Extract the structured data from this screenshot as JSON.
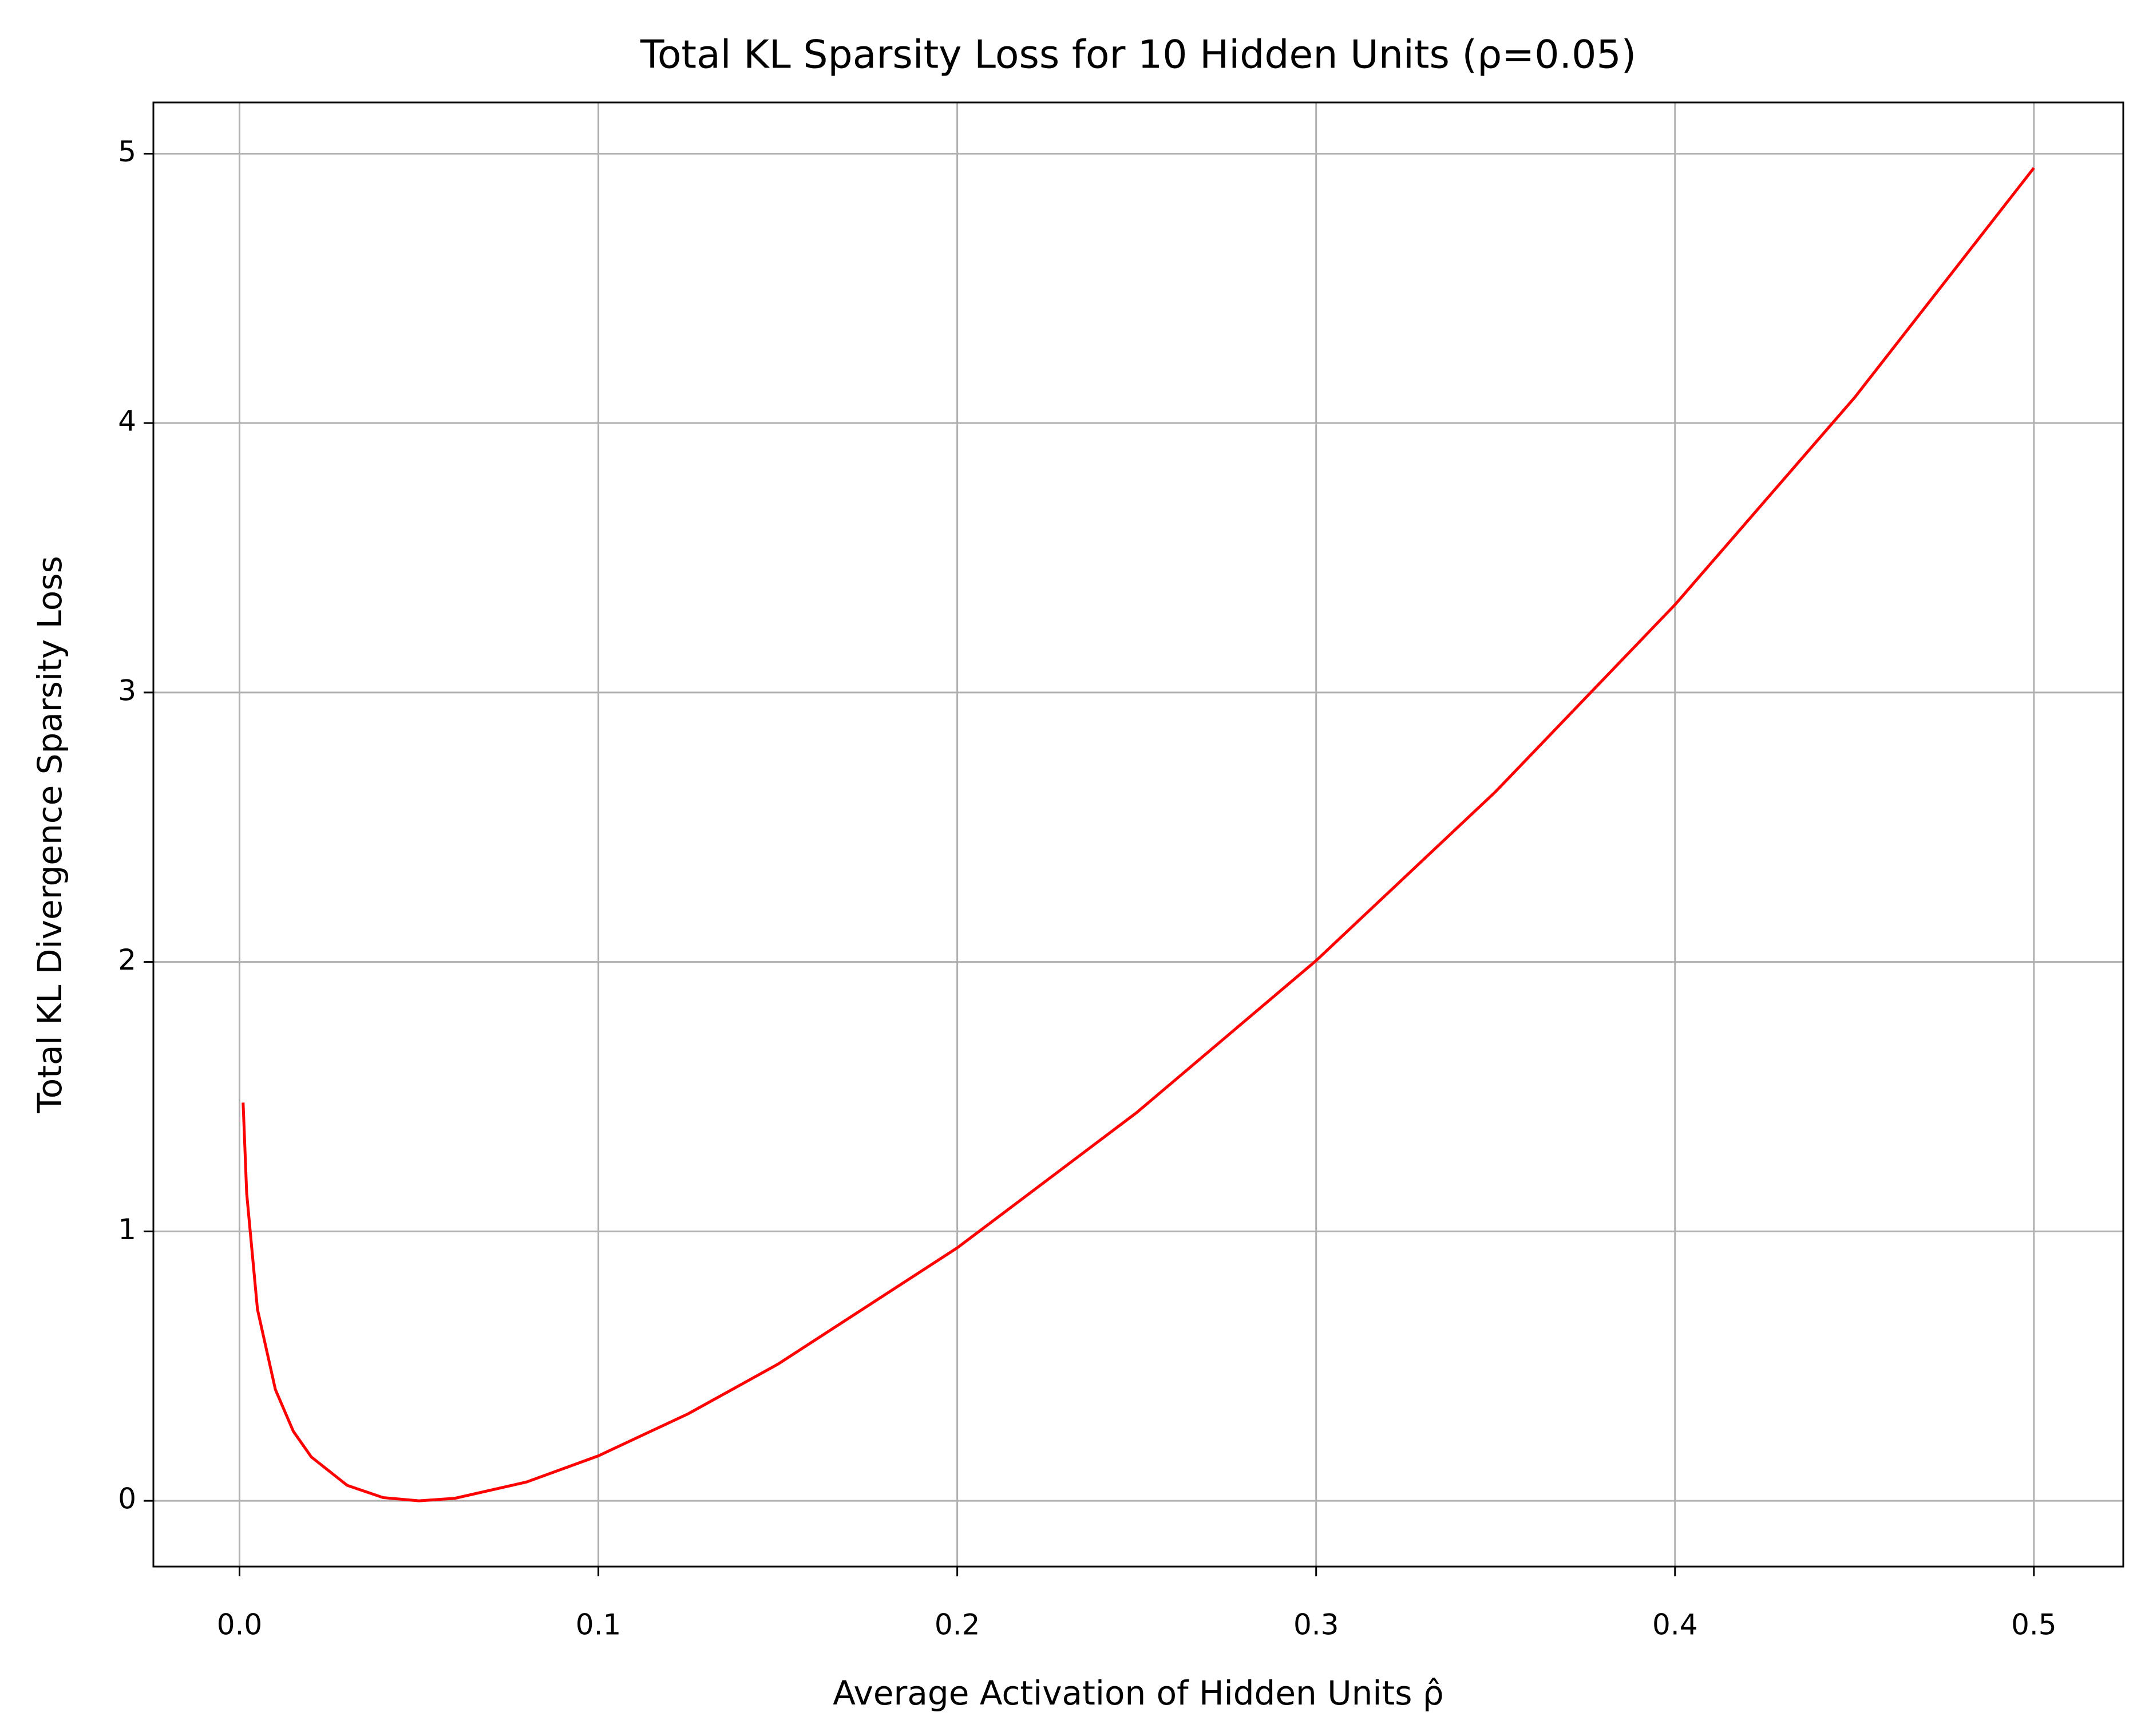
{
  "chart_data": {
    "type": "line",
    "title": "Total KL Sparsity Loss for 10 Hidden Units (ρ=0.05)",
    "x_label": "Average Activation of Hidden Units ρ̂",
    "y_label": "Total KL Divergence Sparsity Loss",
    "x": [
      0.001,
      0.002,
      0.005,
      0.01,
      0.015,
      0.02,
      0.03,
      0.04,
      0.05,
      0.06,
      0.08,
      0.1,
      0.125,
      0.15,
      0.2,
      0.25,
      0.3,
      0.35,
      0.4,
      0.45,
      0.5
    ],
    "series": [
      {
        "color": "#ff0000",
        "values": [
          1.478,
          1.141,
          0.711,
          0.413,
          0.258,
          0.163,
          0.0575,
          0.0121,
          0,
          0.0094,
          0.07,
          0.167,
          0.323,
          0.507,
          0.939,
          1.441,
          2.005,
          2.632,
          3.326,
          4.094,
          4.947
        ]
      }
    ],
    "xlim": [
      -0.024,
      0.5249
    ],
    "ylim": [
      -0.244,
      5.19
    ],
    "xticks": [
      {
        "value": 0,
        "label": "0.0"
      },
      0.1,
      0.2,
      0.3,
      0.4,
      0.5
    ],
    "yticks": [
      0,
      1,
      2,
      3,
      4,
      5
    ],
    "grid": true
  }
}
